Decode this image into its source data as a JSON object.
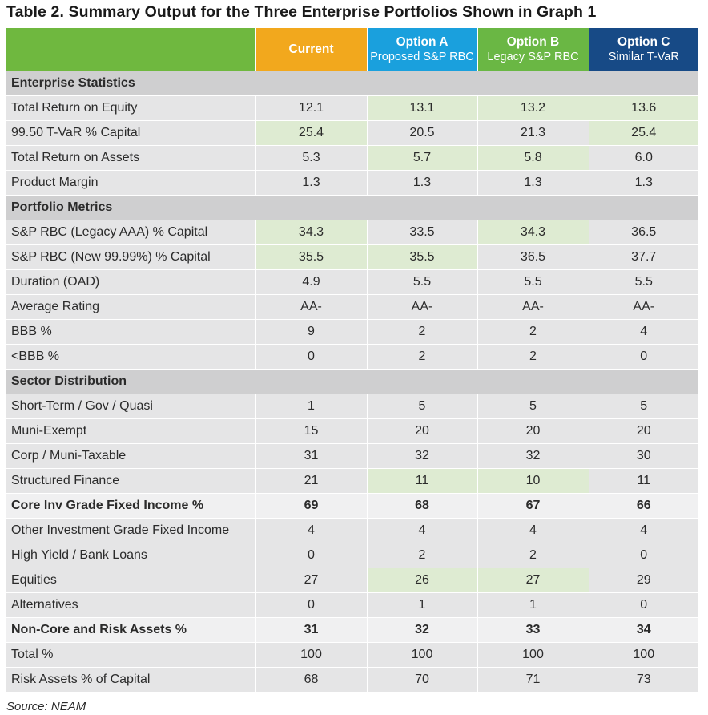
{
  "title": "Table 2. Summary Output for the Three Enterprise Portfolios Shown in Graph 1",
  "source": "Source: NEAM",
  "colors": {
    "header_label": "#6fb83f",
    "current": "#f2a81d",
    "option_a": "#1aa0dd",
    "option_b": "#6ab744",
    "option_c": "#174a86",
    "highlight": "#deebd2",
    "section_bg": "#cfcfd0",
    "row_bg": "#e5e5e6"
  },
  "columns": [
    {
      "title": "",
      "subtitle": ""
    },
    {
      "title": "Current",
      "subtitle": ""
    },
    {
      "title": "Option A",
      "subtitle": "Proposed S&P RBC"
    },
    {
      "title": "Option B",
      "subtitle": "Legacy S&P RBC"
    },
    {
      "title": "Option C",
      "subtitle": "Similar T-VaR"
    }
  ],
  "rows": [
    {
      "type": "section",
      "label": "Enterprise Statistics"
    },
    {
      "type": "data",
      "label": "Total Return on Equity",
      "values": [
        "12.1",
        "13.1",
        "13.2",
        "13.6"
      ],
      "highlight": [
        false,
        true,
        true,
        true
      ]
    },
    {
      "type": "data",
      "label": "99.50 T-VaR % Capital",
      "values": [
        "25.4",
        "20.5",
        "21.3",
        "25.4"
      ],
      "highlight": [
        true,
        false,
        false,
        true
      ]
    },
    {
      "type": "data",
      "label": "Total Return on Assets",
      "values": [
        "5.3",
        "5.7",
        "5.8",
        "6.0"
      ],
      "highlight": [
        false,
        true,
        true,
        false
      ]
    },
    {
      "type": "data",
      "label": "Product Margin",
      "values": [
        "1.3",
        "1.3",
        "1.3",
        "1.3"
      ],
      "highlight": [
        false,
        false,
        false,
        false
      ]
    },
    {
      "type": "section",
      "label": "Portfolio Metrics"
    },
    {
      "type": "data",
      "label": "S&P RBC (Legacy AAA) % Capital",
      "values": [
        "34.3",
        "33.5",
        "34.3",
        "36.5"
      ],
      "highlight": [
        true,
        false,
        true,
        false
      ]
    },
    {
      "type": "data",
      "label": "S&P RBC (New 99.99%) % Capital",
      "values": [
        "35.5",
        "35.5",
        "36.5",
        "37.7"
      ],
      "highlight": [
        true,
        true,
        false,
        false
      ]
    },
    {
      "type": "data",
      "label": "Duration (OAD)",
      "values": [
        "4.9",
        "5.5",
        "5.5",
        "5.5"
      ],
      "highlight": [
        false,
        false,
        false,
        false
      ]
    },
    {
      "type": "data",
      "label": "Average Rating",
      "values": [
        "AA-",
        "AA-",
        "AA-",
        "AA-"
      ],
      "highlight": [
        false,
        false,
        false,
        false
      ]
    },
    {
      "type": "data",
      "label": "BBB %",
      "values": [
        "9",
        "2",
        "2",
        "4"
      ],
      "highlight": [
        false,
        false,
        false,
        false
      ]
    },
    {
      "type": "data",
      "label": "<BBB %",
      "values": [
        "0",
        "2",
        "2",
        "0"
      ],
      "highlight": [
        false,
        false,
        false,
        false
      ]
    },
    {
      "type": "section",
      "label": "Sector Distribution"
    },
    {
      "type": "data",
      "label": "Short-Term / Gov / Quasi",
      "values": [
        "1",
        "5",
        "5",
        "5"
      ],
      "highlight": [
        false,
        false,
        false,
        false
      ]
    },
    {
      "type": "data",
      "label": "Muni-Exempt",
      "values": [
        "15",
        "20",
        "20",
        "20"
      ],
      "highlight": [
        false,
        false,
        false,
        false
      ]
    },
    {
      "type": "data",
      "label": "Corp / Muni-Taxable",
      "values": [
        "31",
        "32",
        "32",
        "30"
      ],
      "highlight": [
        false,
        false,
        false,
        false
      ]
    },
    {
      "type": "data",
      "label": "Structured Finance",
      "values": [
        "21",
        "11",
        "10",
        "11"
      ],
      "highlight": [
        false,
        true,
        true,
        false
      ]
    },
    {
      "type": "bold",
      "label": "Core Inv Grade Fixed Income %",
      "values": [
        "69",
        "68",
        "67",
        "66"
      ],
      "highlight": [
        false,
        false,
        false,
        false
      ]
    },
    {
      "type": "data",
      "label": "Other Investment Grade Fixed Income",
      "values": [
        "4",
        "4",
        "4",
        "4"
      ],
      "highlight": [
        false,
        false,
        false,
        false
      ]
    },
    {
      "type": "data",
      "label": "High Yield / Bank Loans",
      "values": [
        "0",
        "2",
        "2",
        "0"
      ],
      "highlight": [
        false,
        false,
        false,
        false
      ]
    },
    {
      "type": "data",
      "label": "Equities",
      "values": [
        "27",
        "26",
        "27",
        "29"
      ],
      "highlight": [
        false,
        true,
        true,
        false
      ]
    },
    {
      "type": "data",
      "label": "Alternatives",
      "values": [
        "0",
        "1",
        "1",
        "0"
      ],
      "highlight": [
        false,
        false,
        false,
        false
      ]
    },
    {
      "type": "bold",
      "label": "Non-Core and Risk Assets %",
      "values": [
        "31",
        "32",
        "33",
        "34"
      ],
      "highlight": [
        false,
        false,
        false,
        false
      ]
    },
    {
      "type": "data",
      "label": "Total %",
      "values": [
        "100",
        "100",
        "100",
        "100"
      ],
      "highlight": [
        false,
        false,
        false,
        false
      ]
    },
    {
      "type": "data",
      "label": "Risk Assets % of Capital",
      "values": [
        "68",
        "70",
        "71",
        "73"
      ],
      "highlight": [
        false,
        false,
        false,
        false
      ]
    }
  ]
}
